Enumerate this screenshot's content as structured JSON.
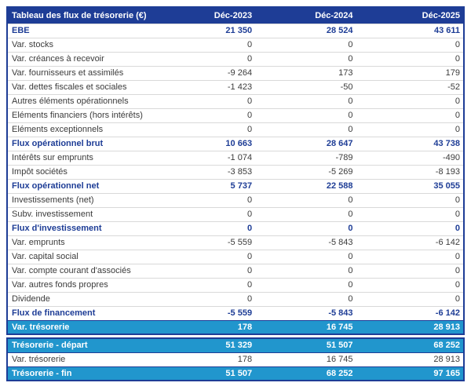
{
  "colors": {
    "header_bg": "#1e3d96",
    "highlight_bg": "#2196cd",
    "bold_text": "#1e3d96",
    "body_text": "#3b3b3b",
    "grid_line": "#d9d9d9"
  },
  "chart_data": {
    "type": "table",
    "title": "Tableau des flux de trésorerie (€)",
    "columns": [
      "Déc-2023",
      "Déc-2024",
      "Déc-2025"
    ],
    "sections": [
      {
        "rows": [
          {
            "label": "EBE",
            "style": "bold",
            "values": [
              "21 350",
              "28 524",
              "43 611"
            ]
          },
          {
            "label": "Var. stocks",
            "style": "normal",
            "values": [
              "0",
              "0",
              "0"
            ]
          },
          {
            "label": "Var. créances à recevoir",
            "style": "normal",
            "values": [
              "0",
              "0",
              "0"
            ]
          },
          {
            "label": "Var. fournisseurs et assimilés",
            "style": "normal",
            "values": [
              "-9 264",
              "173",
              "179"
            ]
          },
          {
            "label": "Var. dettes fiscales et sociales",
            "style": "normal",
            "values": [
              "-1 423",
              "-50",
              "-52"
            ]
          },
          {
            "label": "Autres éléments opérationnels",
            "style": "normal",
            "values": [
              "0",
              "0",
              "0"
            ]
          },
          {
            "label": "Eléments financiers (hors intérêts)",
            "style": "normal",
            "values": [
              "0",
              "0",
              "0"
            ]
          },
          {
            "label": "Eléments exceptionnels",
            "style": "normal",
            "values": [
              "0",
              "0",
              "0"
            ]
          },
          {
            "label": "Flux opérationnel brut",
            "style": "bold",
            "values": [
              "10 663",
              "28 647",
              "43 738"
            ]
          },
          {
            "label": "Intérêts sur emprunts",
            "style": "normal",
            "values": [
              "-1 074",
              "-789",
              "-490"
            ]
          },
          {
            "label": "Impôt sociétés",
            "style": "normal",
            "values": [
              "-3 853",
              "-5 269",
              "-8 193"
            ]
          },
          {
            "label": "Flux opérationnel net",
            "style": "bold",
            "values": [
              "5 737",
              "22 588",
              "35 055"
            ]
          },
          {
            "label": "Investissements (net)",
            "style": "normal",
            "values": [
              "0",
              "0",
              "0"
            ]
          },
          {
            "label": "Subv. investissement",
            "style": "normal",
            "values": [
              "0",
              "0",
              "0"
            ]
          },
          {
            "label": "Flux d'investissement",
            "style": "bold",
            "values": [
              "0",
              "0",
              "0"
            ]
          },
          {
            "label": "Var. emprunts",
            "style": "normal",
            "values": [
              "-5 559",
              "-5 843",
              "-6 142"
            ]
          },
          {
            "label": "Var. capital social",
            "style": "normal",
            "values": [
              "0",
              "0",
              "0"
            ]
          },
          {
            "label": "Var. compte courant d'associés",
            "style": "normal",
            "values": [
              "0",
              "0",
              "0"
            ]
          },
          {
            "label": "Var. autres fonds propres",
            "style": "normal",
            "values": [
              "0",
              "0",
              "0"
            ]
          },
          {
            "label": "Dividende",
            "style": "normal",
            "values": [
              "0",
              "0",
              "0"
            ]
          },
          {
            "label": "Flux de financement",
            "style": "bold",
            "values": [
              "-5 559",
              "-5 843",
              "-6 142"
            ]
          },
          {
            "label": "Var. trésorerie",
            "style": "highlight",
            "values": [
              "178",
              "16 745",
              "28 913"
            ]
          }
        ]
      },
      {
        "rows": [
          {
            "label": "Trésorerie - départ",
            "style": "highlight",
            "values": [
              "51 329",
              "51 507",
              "68 252"
            ]
          },
          {
            "label": "Var. trésorerie",
            "style": "normal",
            "values": [
              "178",
              "16 745",
              "28 913"
            ]
          },
          {
            "label": "Trésorerie - fin",
            "style": "highlight",
            "values": [
              "51 507",
              "68 252",
              "97 165"
            ]
          }
        ]
      }
    ]
  }
}
